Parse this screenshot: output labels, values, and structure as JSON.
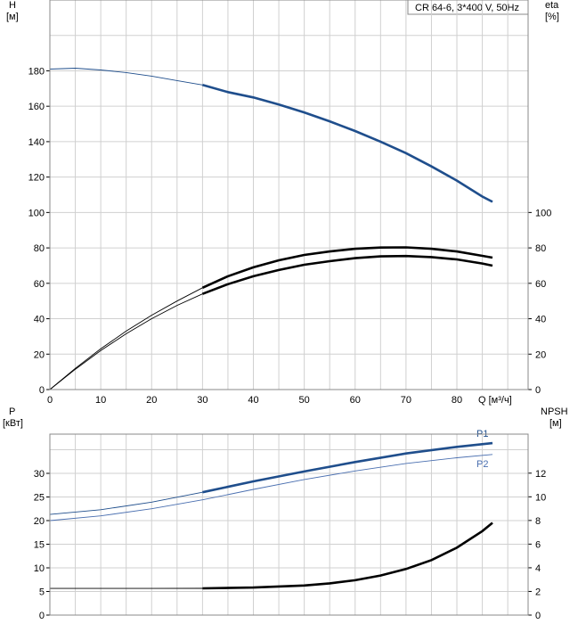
{
  "chart_data": [
    {
      "type": "line",
      "title": "CR 64-6, 3*400 V, 50Hz",
      "xlabel": "Q [м³/ч]",
      "x_ticks": [
        "0",
        "10",
        "20",
        "30",
        "40",
        "50",
        "60",
        "70",
        "80"
      ],
      "xlim": [
        0,
        94
      ],
      "left_axis": {
        "label_line1": "H",
        "label_line2": "[м]",
        "ylim": [
          0,
          220
        ],
        "ticks": [
          "0",
          "20",
          "40",
          "60",
          "80",
          "100",
          "120",
          "140",
          "160",
          "180"
        ]
      },
      "right_axis": {
        "label_line1": "eta",
        "label_line2": "[%]",
        "ylim": [
          0,
          220
        ],
        "ticks": [
          "0",
          "20",
          "40",
          "60",
          "80",
          "100"
        ]
      },
      "grid": true,
      "series": [
        {
          "axis": "left",
          "color": "#1f4e8c",
          "thin_until": 30,
          "points": [
            [
              0,
              181
            ],
            [
              5,
              181.5
            ],
            [
              10,
              180.5
            ],
            [
              15,
              179
            ],
            [
              20,
              177
            ],
            [
              25,
              174.5
            ],
            [
              30,
              172
            ],
            [
              35,
              168
            ],
            [
              40,
              165
            ],
            [
              45,
              161
            ],
            [
              50,
              156.5
            ],
            [
              55,
              151.5
            ],
            [
              60,
              146
            ],
            [
              65,
              140
            ],
            [
              70,
              133.5
            ],
            [
              75,
              126
            ],
            [
              80,
              118
            ],
            [
              85,
              109
            ],
            [
              87,
              106
            ]
          ]
        },
        {
          "axis": "right",
          "color": "#000000",
          "thin_until": 30,
          "points": [
            [
              0,
              0
            ],
            [
              5,
              12
            ],
            [
              10,
              23
            ],
            [
              15,
              33
            ],
            [
              20,
              42
            ],
            [
              25,
              50
            ],
            [
              30,
              57.5
            ],
            [
              35,
              64
            ],
            [
              40,
              69
            ],
            [
              45,
              73
            ],
            [
              50,
              76
            ],
            [
              55,
              78
            ],
            [
              60,
              79.5
            ],
            [
              65,
              80.2
            ],
            [
              70,
              80.3
            ],
            [
              75,
              79.5
            ],
            [
              80,
              78
            ],
            [
              85,
              75.5
            ],
            [
              87,
              74.5
            ]
          ]
        },
        {
          "axis": "right",
          "color": "#000000",
          "thin_until": 30,
          "points": [
            [
              0,
              0
            ],
            [
              5,
              11.5
            ],
            [
              10,
              22
            ],
            [
              15,
              31.5
            ],
            [
              20,
              40
            ],
            [
              25,
              47.5
            ],
            [
              30,
              54
            ],
            [
              35,
              59.5
            ],
            [
              40,
              64
            ],
            [
              45,
              67.5
            ],
            [
              50,
              70.5
            ],
            [
              55,
              72.5
            ],
            [
              60,
              74.2
            ],
            [
              65,
              75.2
            ],
            [
              70,
              75.4
            ],
            [
              75,
              74.8
            ],
            [
              80,
              73.5
            ],
            [
              85,
              71.2
            ],
            [
              87,
              70
            ]
          ]
        }
      ]
    },
    {
      "type": "line",
      "xlabel": "",
      "xlim": [
        0,
        94
      ],
      "left_axis": {
        "label_line1": "P",
        "label_line2": "[кВт]",
        "ylim": [
          0,
          38.3
        ],
        "ticks": [
          "0",
          "5",
          "10",
          "15",
          "20",
          "25",
          "30"
        ]
      },
      "right_axis": {
        "label_line1": "NPSH",
        "label_line2": "[м]",
        "ylim": [
          0,
          15.3
        ],
        "ticks": [
          "0",
          "2",
          "4",
          "6",
          "8",
          "10",
          "12"
        ]
      },
      "grid": true,
      "series": [
        {
          "name": "P1",
          "axis": "left",
          "color": "#1f4e8c",
          "thin_until": 30,
          "points": [
            [
              0,
              21.3
            ],
            [
              10,
              22.3
            ],
            [
              20,
              23.9
            ],
            [
              30,
              26
            ],
            [
              40,
              28.3
            ],
            [
              50,
              30.4
            ],
            [
              60,
              32.4
            ],
            [
              70,
              34.2
            ],
            [
              80,
              35.6
            ],
            [
              87,
              36.4
            ]
          ]
        },
        {
          "name": "P2",
          "axis": "left",
          "color": "#4a6fb0",
          "thin_until": 999,
          "points": [
            [
              0,
              20
            ],
            [
              10,
              21
            ],
            [
              20,
              22.5
            ],
            [
              30,
              24.4
            ],
            [
              40,
              26.6
            ],
            [
              50,
              28.7
            ],
            [
              60,
              30.5
            ],
            [
              70,
              32.1
            ],
            [
              80,
              33.3
            ],
            [
              87,
              34
            ]
          ]
        },
        {
          "axis": "right",
          "color": "#000000",
          "thin_until": 30,
          "points": [
            [
              0,
              2.25
            ],
            [
              10,
              2.25
            ],
            [
              20,
              2.25
            ],
            [
              30,
              2.26
            ],
            [
              40,
              2.33
            ],
            [
              50,
              2.5
            ],
            [
              55,
              2.68
            ],
            [
              60,
              2.95
            ],
            [
              65,
              3.35
            ],
            [
              70,
              3.9
            ],
            [
              75,
              4.65
            ],
            [
              80,
              5.7
            ],
            [
              85,
              7.1
            ],
            [
              87,
              7.8
            ]
          ]
        }
      ]
    }
  ]
}
